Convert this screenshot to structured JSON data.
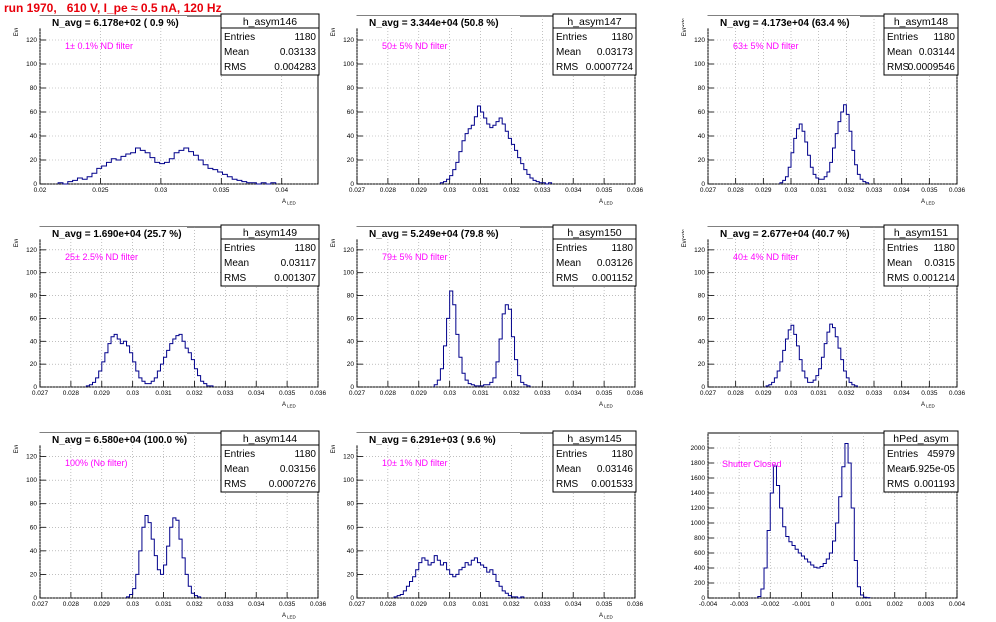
{
  "page_title": "run 1970,   610 V, I_pe ≈ 0.5 nA, 120 Hz",
  "colors": {
    "title": "#e8000b",
    "histogram": "#00008b",
    "annotation": "#ff00ff",
    "grid": "#999999"
  },
  "stats_labels": {
    "entries": "Entries",
    "mean": "Mean",
    "rms": "RMS"
  },
  "chart_data": [
    {
      "type": "bar",
      "name": "h_asym146",
      "headline": "N_avg = 6.178e+02 ( 0.9 %)",
      "annotation": "1± 0.1% ND filter",
      "stats": {
        "entries": "1180",
        "mean": "0.03133",
        "rms": "0.004283"
      },
      "xlabel": "A_LED",
      "ylabel": "Events",
      "xlim": [
        0.02,
        0.043
      ],
      "ylim": [
        0,
        140
      ],
      "xticks": [
        0.02,
        0.025,
        0.03,
        0.035,
        0.04
      ],
      "xtick_labels": [
        "0.02",
        "0.025",
        "0.03",
        "0.035",
        "0.04"
      ],
      "yticks": [
        0,
        20,
        40,
        60,
        80,
        100,
        120
      ],
      "grid": true,
      "bins": {
        "start": 0.0215,
        "width": 0.0004,
        "values": [
          1,
          0,
          2,
          3,
          5,
          4,
          6,
          9,
          13,
          15,
          18,
          21,
          20,
          23,
          25,
          26,
          30,
          28,
          26,
          22,
          18,
          17,
          18,
          21,
          26,
          28,
          30,
          27,
          24,
          20,
          16,
          13,
          12,
          10,
          8,
          6,
          4,
          3,
          2,
          1,
          1,
          0,
          1,
          0,
          1
        ]
      }
    },
    {
      "type": "bar",
      "name": "h_asym147",
      "headline": "N_avg = 3.344e+04 (50.8 %)",
      "annotation": "50± 5% ND filter",
      "stats": {
        "entries": "1180",
        "mean": "0.03173",
        "rms": "0.0007724"
      },
      "xlabel": "A_LED",
      "ylabel": "Events",
      "xlim": [
        0.027,
        0.036
      ],
      "ylim": [
        0,
        140
      ],
      "xticks": [
        0.027,
        0.028,
        0.029,
        0.03,
        0.031,
        0.032,
        0.033,
        0.034,
        0.035,
        0.036
      ],
      "xtick_labels": [
        "0.027",
        "0.028",
        "0.029",
        "0.03",
        "0.031",
        "0.032",
        "0.033",
        "0.034",
        "0.035",
        "0.036"
      ],
      "yticks": [
        0,
        20,
        40,
        60,
        80,
        100,
        120
      ],
      "grid": true,
      "bins": {
        "start": 0.0297,
        "width": 0.0001,
        "values": [
          1,
          2,
          4,
          7,
          12,
          18,
          27,
          36,
          42,
          46,
          49,
          56,
          65,
          60,
          55,
          50,
          47,
          49,
          52,
          55,
          50,
          44,
          38,
          33,
          28,
          22,
          17,
          12,
          8,
          5,
          3,
          2,
          1,
          1,
          0,
          1
        ]
      }
    },
    {
      "type": "bar",
      "name": "h_asym148",
      "headline": "N_avg = 4.173e+04 (63.4 %)",
      "annotation": "63± 5% ND filter",
      "stats": {
        "entries": "1180",
        "mean": "0.03144",
        "rms": "0.0009546"
      },
      "xlabel": "A_LED",
      "ylabel": "Events",
      "xlim": [
        0.027,
        0.036
      ],
      "ylim": [
        0,
        140
      ],
      "xticks": [
        0.027,
        0.028,
        0.029,
        0.03,
        0.031,
        0.032,
        0.033,
        0.034,
        0.035,
        0.036
      ],
      "xtick_labels": [
        "0.027",
        "0.028",
        "0.029",
        "0.03",
        "0.031",
        "0.032",
        "0.033",
        "0.034",
        "0.035",
        "0.036"
      ],
      "yticks": [
        0,
        20,
        40,
        60,
        80,
        100,
        120
      ],
      "grid": true,
      "bins": {
        "start": 0.0296,
        "width": 0.0001,
        "values": [
          1,
          3,
          6,
          14,
          26,
          38,
          46,
          50,
          44,
          35,
          24,
          14,
          8,
          5,
          4,
          4,
          6,
          10,
          18,
          30,
          42,
          52,
          60,
          66,
          58,
          44,
          28,
          16,
          8,
          4,
          2,
          1
        ]
      }
    },
    {
      "type": "bar",
      "name": "h_asym149",
      "headline": "N_avg = 1.690e+04 (25.7 %)",
      "annotation": "25± 2.5% ND filter",
      "stats": {
        "entries": "1180",
        "mean": "0.03117",
        "rms": "0.001307"
      },
      "xlabel": "A_LED",
      "ylabel": "Events",
      "xlim": [
        0.027,
        0.036
      ],
      "ylim": [
        0,
        140
      ],
      "xticks": [
        0.027,
        0.028,
        0.029,
        0.03,
        0.031,
        0.032,
        0.033,
        0.034,
        0.035,
        0.036
      ],
      "xtick_labels": [
        "0.027",
        "0.028",
        "0.029",
        "0.03",
        "0.031",
        "0.032",
        "0.033",
        "0.034",
        "0.035",
        "0.036"
      ],
      "yticks": [
        0,
        20,
        40,
        60,
        80,
        100,
        120
      ],
      "grid": true,
      "bins": {
        "start": 0.0285,
        "width": 0.0001,
        "values": [
          1,
          2,
          4,
          8,
          14,
          22,
          30,
          38,
          44,
          46,
          42,
          38,
          40,
          36,
          30,
          22,
          14,
          8,
          5,
          3,
          3,
          5,
          8,
          14,
          20,
          26,
          32,
          38,
          42,
          45,
          46,
          40,
          34,
          30,
          24,
          16,
          10,
          5,
          3,
          1,
          1
        ]
      }
    },
    {
      "type": "bar",
      "name": "h_asym150",
      "headline": "N_avg = 5.249e+04 (79.8 %)",
      "annotation": "79± 5% ND filter",
      "stats": {
        "entries": "1180",
        "mean": "0.03126",
        "rms": "0.001152"
      },
      "xlabel": "A_LED",
      "ylabel": "Events",
      "xlim": [
        0.027,
        0.036
      ],
      "ylim": [
        0,
        140
      ],
      "xticks": [
        0.027,
        0.028,
        0.029,
        0.03,
        0.031,
        0.032,
        0.033,
        0.034,
        0.035,
        0.036
      ],
      "xtick_labels": [
        "0.027",
        "0.028",
        "0.029",
        "0.03",
        "0.031",
        "0.032",
        "0.033",
        "0.034",
        "0.035",
        "0.036"
      ],
      "yticks": [
        0,
        20,
        40,
        60,
        80,
        100,
        120
      ],
      "grid": true,
      "bins": {
        "start": 0.0295,
        "width": 0.0001,
        "values": [
          2,
          6,
          16,
          36,
          60,
          84,
          72,
          46,
          26,
          12,
          6,
          3,
          2,
          1,
          1,
          1,
          2,
          2,
          4,
          8,
          22,
          42,
          64,
          72,
          68,
          44,
          24,
          10,
          4,
          2,
          1
        ]
      }
    },
    {
      "type": "bar",
      "name": "h_asym151",
      "headline": "N_avg = 2.677e+04 (40.7 %)",
      "annotation": "40± 4% ND filter",
      "stats": {
        "entries": "1180",
        "mean": "0.0315",
        "rms": "0.001214"
      },
      "xlabel": "A_LED",
      "ylabel": "Events",
      "xlim": [
        0.027,
        0.036
      ],
      "ylim": [
        0,
        140
      ],
      "xticks": [
        0.027,
        0.028,
        0.029,
        0.03,
        0.031,
        0.032,
        0.033,
        0.034,
        0.035,
        0.036
      ],
      "xtick_labels": [
        "0.027",
        "0.028",
        "0.029",
        "0.03",
        "0.031",
        "0.032",
        "0.033",
        "0.034",
        "0.035",
        "0.036"
      ],
      "yticks": [
        0,
        20,
        40,
        60,
        80,
        100,
        120
      ],
      "grid": true,
      "bins": {
        "start": 0.0291,
        "width": 0.0001,
        "values": [
          1,
          2,
          4,
          8,
          14,
          22,
          32,
          42,
          50,
          54,
          46,
          36,
          24,
          14,
          8,
          4,
          4,
          6,
          10,
          16,
          26,
          38,
          48,
          55,
          52,
          44,
          34,
          24,
          14,
          8,
          4,
          2,
          1
        ]
      }
    },
    {
      "type": "bar",
      "name": "h_asym144",
      "headline": "N_avg = 6.580e+04 (100.0 %)",
      "annotation": "100% (No filter)",
      "stats": {
        "entries": "1180",
        "mean": "0.03156",
        "rms": "0.0007276"
      },
      "xlabel": "A_LED",
      "ylabel": "Events",
      "xlim": [
        0.027,
        0.036
      ],
      "ylim": [
        0,
        140
      ],
      "xticks": [
        0.027,
        0.028,
        0.029,
        0.03,
        0.031,
        0.032,
        0.033,
        0.034,
        0.035,
        0.036
      ],
      "xtick_labels": [
        "0.027",
        "0.028",
        "0.029",
        "0.03",
        "0.031",
        "0.032",
        "0.033",
        "0.034",
        "0.035",
        "0.036"
      ],
      "yticks": [
        0,
        20,
        40,
        60,
        80,
        100,
        120
      ],
      "grid": true,
      "bins": {
        "start": 0.0298,
        "width": 0.0001,
        "values": [
          1,
          3,
          8,
          20,
          40,
          60,
          70,
          64,
          50,
          36,
          24,
          20,
          28,
          44,
          60,
          68,
          66,
          50,
          34,
          20,
          10,
          4,
          2,
          1
        ]
      }
    },
    {
      "type": "bar",
      "name": "h_asym145",
      "headline": "N_avg = 6.291e+03 ( 9.6 %)",
      "annotation": "10± 1% ND filter",
      "stats": {
        "entries": "1180",
        "mean": "0.03146",
        "rms": "0.001533"
      },
      "xlabel": "A_LED",
      "ylabel": "Events",
      "xlim": [
        0.027,
        0.036
      ],
      "ylim": [
        0,
        140
      ],
      "xticks": [
        0.027,
        0.028,
        0.029,
        0.03,
        0.031,
        0.032,
        0.033,
        0.034,
        0.035,
        0.036
      ],
      "xtick_labels": [
        "0.027",
        "0.028",
        "0.029",
        "0.03",
        "0.031",
        "0.032",
        "0.033",
        "0.034",
        "0.035",
        "0.036"
      ],
      "yticks": [
        0,
        20,
        40,
        60,
        80,
        100,
        120
      ],
      "grid": true,
      "bins": {
        "start": 0.0282,
        "width": 0.0001,
        "values": [
          1,
          2,
          3,
          6,
          10,
          14,
          18,
          24,
          30,
          34,
          32,
          28,
          30,
          36,
          32,
          28,
          30,
          24,
          20,
          18,
          20,
          24,
          26,
          30,
          28,
          32,
          34,
          30,
          28,
          26,
          22,
          24,
          20,
          14,
          10,
          6,
          4,
          2,
          1,
          1,
          0,
          1
        ]
      }
    },
    {
      "type": "bar",
      "name": "hPed_asym",
      "headline": "",
      "annotation": "Shutter Closed",
      "stats": {
        "entries": "45979",
        "mean": "-5.925e-05",
        "rms": "0.001193"
      },
      "xlabel": "",
      "ylabel": "",
      "xlim": [
        -0.004,
        0.004
      ],
      "ylim": [
        0,
        2200
      ],
      "xticks": [
        -0.004,
        -0.003,
        -0.002,
        -0.001,
        0,
        0.001,
        0.002,
        0.003,
        0.004
      ],
      "xtick_labels": [
        "-0.004",
        "-0.003",
        "-0.002",
        "-0.001",
        "0",
        "0.001",
        "0.002",
        "0.003",
        "0.004"
      ],
      "yticks": [
        0,
        200,
        400,
        600,
        800,
        1000,
        1200,
        1400,
        1600,
        1800,
        2000
      ],
      "grid": true,
      "bins": {
        "start": -0.0024,
        "width": 0.0001,
        "values": [
          20,
          120,
          400,
          900,
          1400,
          1760,
          1500,
          1200,
          950,
          820,
          750,
          700,
          650,
          600,
          560,
          520,
          480,
          440,
          410,
          400,
          420,
          460,
          520,
          600,
          760,
          1000,
          1350,
          1750,
          2060,
          1800,
          1200,
          500,
          150,
          40,
          10,
          5
        ]
      }
    }
  ]
}
